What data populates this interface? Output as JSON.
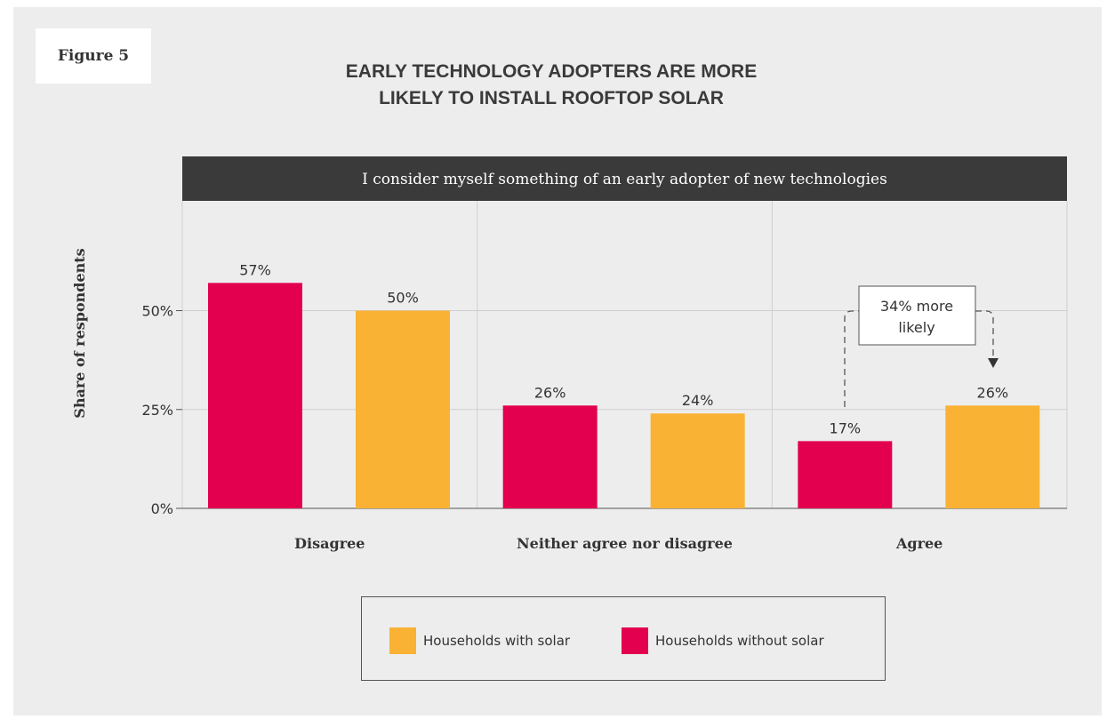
{
  "figure_label": "Figure 5",
  "title_line1": "EARLY TECHNOLOGY ADOPTERS ARE MORE",
  "title_line2": "LIKELY TO INSTALL ROOFTOP SOLAR",
  "colors": {
    "panel_bg": "#ededed",
    "header_bg": "#3a3a3a",
    "without_solar": "#e3004f",
    "with_solar": "#f9b234"
  },
  "annotation": {
    "line1": "34% more",
    "line2": "likely"
  },
  "legend": {
    "with_solar": "Households with solar",
    "without_solar": "Households without solar"
  },
  "chart_data": {
    "type": "bar",
    "header": "I consider myself something of an early adopter of new technologies",
    "ylabel": "Share of respondents",
    "ylim": [
      0,
      70
    ],
    "yticks": [
      {
        "value": 0,
        "label": "0%"
      },
      {
        "value": 25,
        "label": "25%"
      },
      {
        "value": 50,
        "label": "50%"
      }
    ],
    "categories": [
      "Disagree",
      "Neither agree nor disagree",
      "Agree"
    ],
    "series": [
      {
        "name": "Households without solar",
        "color": "#e3004f",
        "values": [
          57,
          26,
          17
        ],
        "labels": [
          "57%",
          "26%",
          "17%"
        ]
      },
      {
        "name": "Households with solar",
        "color": "#f9b234",
        "values": [
          50,
          24,
          26
        ],
        "labels": [
          "50%",
          "24%",
          "26%"
        ]
      }
    ],
    "grid": true,
    "legend_position": "bottom"
  }
}
